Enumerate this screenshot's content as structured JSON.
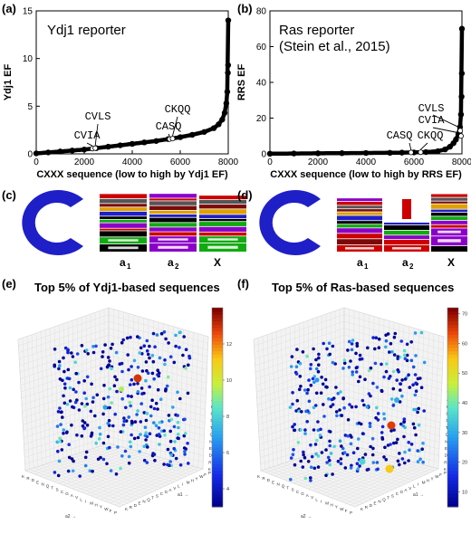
{
  "panel_letters": {
    "a": "(a)",
    "b": "(b)",
    "c": "(c)",
    "d": "(d)",
    "e": "(e)",
    "f": "(f)"
  },
  "logo_labels": {
    "a1": "a",
    "a1_sub": "1",
    "a2": "a",
    "a2_sub": "2",
    "x": "X"
  },
  "chart_data": [
    {
      "id": "a",
      "type": "scatter",
      "title": "Ydj1 reporter",
      "xlabel": "CXXX sequence (low to high by Ydj1 EF)",
      "ylabel": "Ydj1 EF",
      "xlim": [
        0,
        8000
      ],
      "ylim": [
        0,
        15
      ],
      "xticks": [
        0,
        2000,
        4000,
        6000,
        8000
      ],
      "yticks": [
        0,
        5,
        10,
        15
      ],
      "curve": [
        [
          0,
          0.05
        ],
        [
          500,
          0.15
        ],
        [
          1000,
          0.25
        ],
        [
          1500,
          0.35
        ],
        [
          2000,
          0.45
        ],
        [
          2500,
          0.6
        ],
        [
          3000,
          0.75
        ],
        [
          3500,
          0.9
        ],
        [
          4000,
          1.05
        ],
        [
          4500,
          1.2
        ],
        [
          5000,
          1.35
        ],
        [
          5500,
          1.55
        ],
        [
          6000,
          1.75
        ],
        [
          6500,
          2.0
        ],
        [
          7000,
          2.3
        ],
        [
          7400,
          2.7
        ],
        [
          7600,
          3.1
        ],
        [
          7750,
          3.6
        ],
        [
          7850,
          4.3
        ],
        [
          7920,
          5.3
        ],
        [
          7960,
          6.5
        ],
        [
          7985,
          8.5
        ],
        [
          7995,
          9.3
        ],
        [
          8000,
          14
        ]
      ],
      "annotations": [
        {
          "label": "CVIA",
          "x": 2340,
          "y": 0.55
        },
        {
          "label": "CVLS",
          "x": 2460,
          "y": 0.6
        },
        {
          "label": "CASQ",
          "x": 5560,
          "y": 1.55
        },
        {
          "label": "CKQQ",
          "x": 5680,
          "y": 1.6
        }
      ]
    },
    {
      "id": "b",
      "type": "scatter",
      "title": "Ras reporter",
      "subtitle": "(Stein et al., 2015)",
      "xlabel": "CXXX sequence (low to high by RRS EF)",
      "ylabel": "RRS EF",
      "xlim": [
        0,
        8000
      ],
      "ylim": [
        0,
        80
      ],
      "xticks": [
        0,
        2000,
        4000,
        6000,
        8000
      ],
      "yticks": [
        0,
        20,
        40,
        60,
        80
      ],
      "curve": [
        [
          0,
          0.1
        ],
        [
          1000,
          0.2
        ],
        [
          2000,
          0.3
        ],
        [
          3000,
          0.4
        ],
        [
          4000,
          0.5
        ],
        [
          5000,
          0.6
        ],
        [
          5500,
          0.7
        ],
        [
          6000,
          0.8
        ],
        [
          6500,
          1.0
        ],
        [
          7000,
          1.5
        ],
        [
          7300,
          2.5
        ],
        [
          7500,
          4
        ],
        [
          7650,
          6
        ],
        [
          7750,
          8
        ],
        [
          7850,
          11
        ],
        [
          7920,
          15
        ],
        [
          7960,
          22
        ],
        [
          7985,
          32
        ],
        [
          7995,
          45
        ],
        [
          8000,
          70
        ]
      ],
      "annotations": [
        {
          "label": "CASQ",
          "x": 5880,
          "y": 0.8
        },
        {
          "label": "CKQQ",
          "x": 6280,
          "y": 0.9
        },
        {
          "label": "CVLS",
          "x": 7930,
          "y": 13
        },
        {
          "label": "CVIA",
          "x": 7960,
          "y": 10
        }
      ]
    },
    {
      "id": "e",
      "type": "scatter",
      "title": "Top 5% of Ydj1-based sequences",
      "axis_letters": [
        "K",
        "R",
        "D",
        "E",
        "N",
        "Q",
        "T",
        "S",
        "C",
        "G",
        "A",
        "V",
        "L",
        "I",
        "M",
        "H",
        "Y",
        "W",
        "F",
        "P"
      ],
      "colorbar_ticks": [
        4,
        6,
        8,
        10,
        12
      ],
      "colorbar_range": [
        3,
        14
      ],
      "x_axis_label": "a2 →",
      "y_axis_label": "a1 →",
      "z_axis_label": "X →"
    },
    {
      "id": "f",
      "type": "scatter",
      "title": "Top 5% of Ras-based sequences",
      "axis_letters": [
        "K",
        "R",
        "D",
        "E",
        "N",
        "Q",
        "T",
        "S",
        "C",
        "G",
        "A",
        "V",
        "L",
        "I",
        "M",
        "H",
        "Y",
        "W",
        "F",
        "P"
      ],
      "colorbar_ticks": [
        10,
        20,
        30,
        40,
        50,
        60,
        70
      ],
      "colorbar_range": [
        5,
        72
      ],
      "x_axis_label": "a2 →",
      "y_axis_label": "a1 →",
      "z_axis_label": "X →"
    }
  ]
}
